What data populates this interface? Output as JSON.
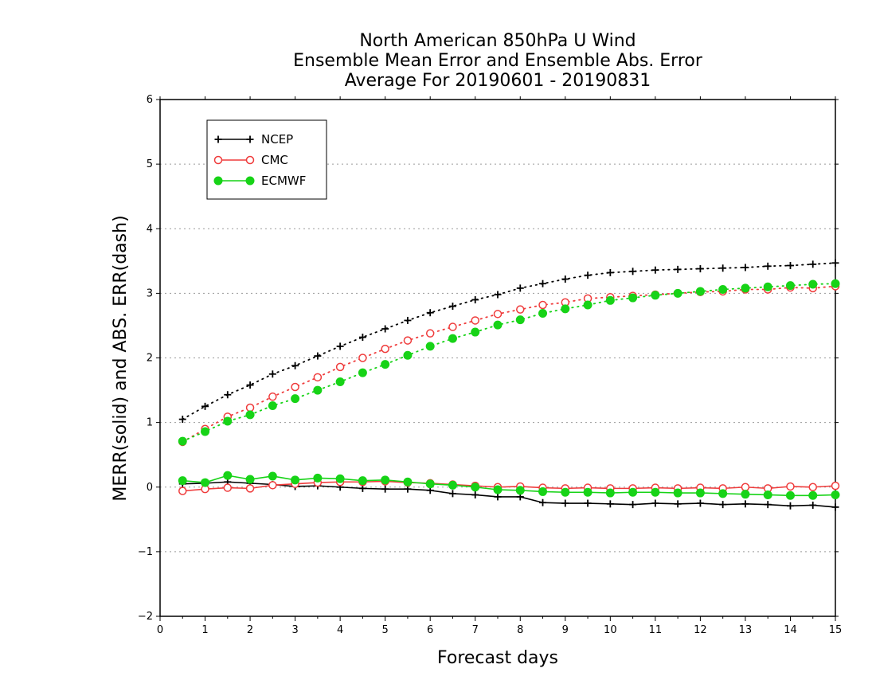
{
  "chart_data": {
    "type": "line",
    "title_lines": [
      "North American 850hPa U Wind",
      "Ensemble Mean Error and Ensemble Abs. Error",
      "Average For 20190601 - 20190831"
    ],
    "xlabel": "Forecast days",
    "ylabel": "MERR(solid) and ABS. ERR(dash)",
    "xlim": [
      0,
      15
    ],
    "ylim": [
      -2,
      6
    ],
    "x_ticks": [
      "0",
      "1",
      "2",
      "3",
      "4",
      "5",
      "6",
      "7",
      "8",
      "9",
      "10",
      "11",
      "12",
      "13",
      "14",
      "15"
    ],
    "y_ticks": [
      "-2",
      "-1",
      "0",
      "1",
      "2",
      "3",
      "4",
      "5",
      "6"
    ],
    "grid": "horizontal dotted",
    "legend_position": "top-left",
    "x": [
      0.5,
      1,
      1.5,
      2,
      2.5,
      3,
      3.5,
      4,
      4.5,
      5,
      5.5,
      6,
      6.5,
      7,
      7.5,
      8,
      8.5,
      9,
      9.5,
      10,
      10.5,
      11,
      11.5,
      12,
      12.5,
      13,
      13.5,
      14,
      14.5,
      15
    ],
    "series": [
      {
        "name": "NCEP",
        "color": "#000000",
        "marker": "plus",
        "merr": [
          0.05,
          0.06,
          0.08,
          0.06,
          0.04,
          0.01,
          0.02,
          0.0,
          -0.02,
          -0.03,
          -0.03,
          -0.05,
          -0.1,
          -0.12,
          -0.15,
          -0.15,
          -0.24,
          -0.25,
          -0.25,
          -0.26,
          -0.27,
          -0.25,
          -0.26,
          -0.25,
          -0.27,
          -0.26,
          -0.27,
          -0.29,
          -0.28,
          -0.31
        ],
        "abs_err": [
          1.05,
          1.25,
          1.43,
          1.58,
          1.75,
          1.88,
          2.03,
          2.18,
          2.32,
          2.45,
          2.58,
          2.7,
          2.8,
          2.9,
          2.98,
          3.08,
          3.15,
          3.22,
          3.28,
          3.32,
          3.34,
          3.36,
          3.37,
          3.38,
          3.39,
          3.4,
          3.42,
          3.43,
          3.45,
          3.47
        ]
      },
      {
        "name": "CMC",
        "color": "#ef3b3b",
        "marker": "open-circle",
        "merr": [
          -0.06,
          -0.03,
          -0.01,
          -0.02,
          0.03,
          0.05,
          0.07,
          0.08,
          0.08,
          0.09,
          0.07,
          0.06,
          0.04,
          0.02,
          0.0,
          0.01,
          -0.01,
          -0.02,
          -0.01,
          -0.02,
          -0.02,
          -0.01,
          -0.02,
          -0.01,
          -0.02,
          0.0,
          -0.02,
          0.01,
          0.0,
          0.02
        ],
        "abs_err": [
          0.7,
          0.9,
          1.09,
          1.23,
          1.4,
          1.55,
          1.7,
          1.86,
          2.0,
          2.14,
          2.27,
          2.38,
          2.48,
          2.58,
          2.68,
          2.75,
          2.82,
          2.86,
          2.92,
          2.94,
          2.96,
          2.98,
          3.0,
          3.02,
          3.03,
          3.06,
          3.06,
          3.09,
          3.08,
          3.11
        ]
      },
      {
        "name": "ECMWF",
        "color": "#17d317",
        "marker": "filled-circle",
        "merr": [
          0.1,
          0.07,
          0.18,
          0.12,
          0.17,
          0.11,
          0.14,
          0.13,
          0.1,
          0.11,
          0.08,
          0.05,
          0.03,
          0.0,
          -0.04,
          -0.05,
          -0.07,
          -0.08,
          -0.08,
          -0.09,
          -0.08,
          -0.08,
          -0.09,
          -0.09,
          -0.1,
          -0.11,
          -0.12,
          -0.13,
          -0.13,
          -0.12
        ],
        "abs_err": [
          0.71,
          0.86,
          1.02,
          1.12,
          1.26,
          1.37,
          1.5,
          1.63,
          1.77,
          1.9,
          2.04,
          2.18,
          2.3,
          2.4,
          2.51,
          2.59,
          2.69,
          2.76,
          2.82,
          2.89,
          2.93,
          2.97,
          3.0,
          3.03,
          3.06,
          3.08,
          3.1,
          3.12,
          3.14,
          3.15
        ]
      }
    ]
  }
}
